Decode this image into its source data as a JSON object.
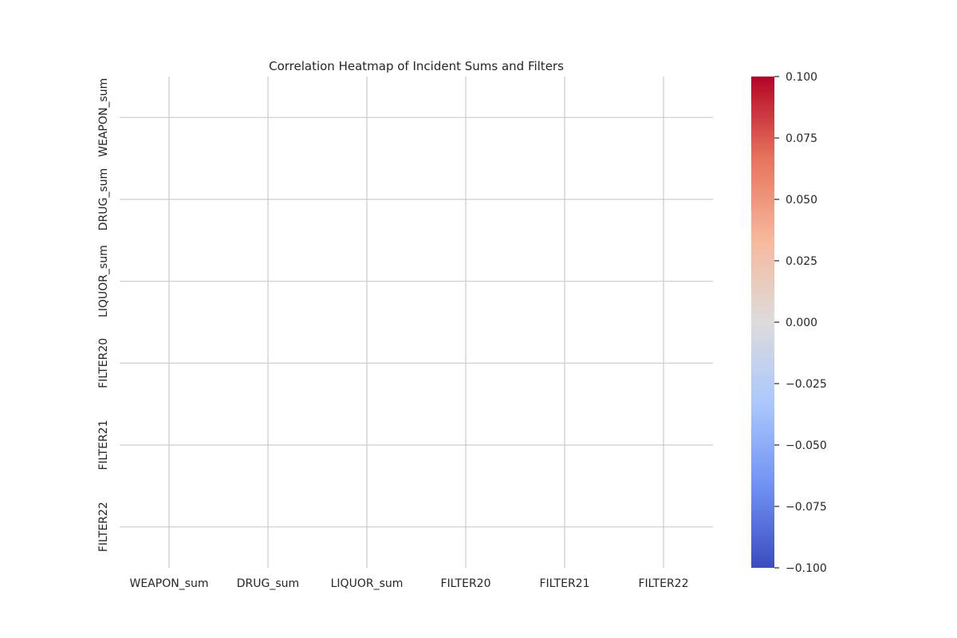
{
  "chart_data": {
    "type": "heatmap",
    "title": "Correlation Heatmap of Incident Sums and Filters",
    "x_labels": [
      "WEAPON_sum",
      "DRUG_sum",
      "LIQUOR_sum",
      "FILTER20",
      "FILTER21",
      "FILTER22"
    ],
    "y_labels": [
      "WEAPON_sum",
      "DRUG_sum",
      "LIQUOR_sum",
      "FILTER20",
      "FILTER21",
      "FILTER22"
    ],
    "values": [
      [
        null,
        null,
        null,
        null,
        null,
        null
      ],
      [
        null,
        null,
        null,
        null,
        null,
        null
      ],
      [
        null,
        null,
        null,
        null,
        null,
        null
      ],
      [
        null,
        null,
        null,
        null,
        null,
        null
      ],
      [
        null,
        null,
        null,
        null,
        null,
        null
      ],
      [
        null,
        null,
        null,
        null,
        null,
        null
      ]
    ],
    "colormap": "coolwarm",
    "colorbar": {
      "range": [
        -0.1,
        0.1
      ],
      "ticks": [
        0.1,
        0.075,
        0.05,
        0.025,
        0.0,
        -0.025,
        -0.05,
        -0.075,
        -0.1
      ],
      "tick_labels": [
        "0.100",
        "0.075",
        "0.050",
        "0.025",
        "0.000",
        "−0.025",
        "−0.050",
        "−0.075",
        "−0.100"
      ],
      "colors": [
        "#b40426",
        "#e7745b",
        "#f7b89c",
        "#dddcdc",
        "#aac7fd",
        "#6f92f3",
        "#3b4cc0"
      ]
    },
    "grid": true,
    "grid_color": "#cccccc",
    "xlabel": "",
    "ylabel": ""
  }
}
